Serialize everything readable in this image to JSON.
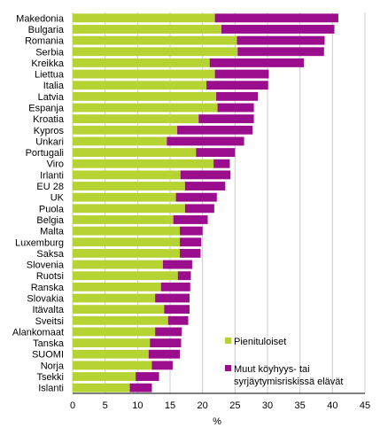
{
  "chart_data": {
    "type": "bar",
    "orientation": "horizontal",
    "stacked": true,
    "categories": [
      "Makedonia",
      "Bulgaria",
      "Romania",
      "Serbia",
      "Kreikka",
      "Liettua",
      "Italia",
      "Latvia",
      "Espanja",
      "Kroatia",
      "Kypros",
      "Unkari",
      "Portugali",
      "Viro",
      "Irlanti",
      "EU 28",
      "UK",
      "Puola",
      "Belgia",
      "Malta",
      "Luxemburg",
      "Saksa",
      "Slovenia",
      "Ruotsi",
      "Ranska",
      "Slovakia",
      "Itävalta",
      "Sveitsi",
      "Alankomaat",
      "Tanska",
      "SUOMI",
      "Norja",
      "Tsekki",
      "Islanti"
    ],
    "series": [
      {
        "name": "Pienituloiset",
        "color": "#b5d333",
        "values": [
          21.9,
          22.9,
          25.3,
          25.4,
          21.1,
          21.9,
          20.6,
          22.1,
          22.3,
          19.4,
          16.1,
          14.5,
          19.0,
          21.7,
          16.6,
          17.3,
          15.9,
          17.3,
          15.5,
          16.5,
          16.5,
          16.5,
          13.9,
          16.2,
          13.6,
          12.7,
          14.1,
          14.7,
          12.7,
          11.9,
          11.7,
          12.2,
          9.7,
          8.8
        ],
        "value_labels": []
      },
      {
        "name": "Muut köyhyys- tai syrjäytymisriskissä elävät",
        "color": "#9a0d8c",
        "values": [
          19.0,
          17.4,
          13.5,
          13.3,
          14.5,
          8.3,
          9.5,
          6.4,
          5.6,
          8.5,
          11.6,
          11.9,
          6.0,
          2.5,
          7.7,
          6.2,
          6.3,
          4.5,
          5.3,
          3.5,
          3.3,
          3.2,
          4.5,
          2.0,
          4.5,
          5.3,
          3.9,
          3.1,
          4.1,
          4.8,
          4.8,
          3.2,
          3.6,
          3.4
        ],
        "value_labels": []
      }
    ],
    "xlim": [
      0,
      45
    ],
    "xticks": [
      "0",
      "5",
      "10",
      "15",
      "20",
      "25",
      "30",
      "35",
      "40",
      "45"
    ],
    "xlabel": "%",
    "ylabel": "",
    "title": "",
    "grid": "vertical",
    "legend_position": "bottom-right"
  }
}
